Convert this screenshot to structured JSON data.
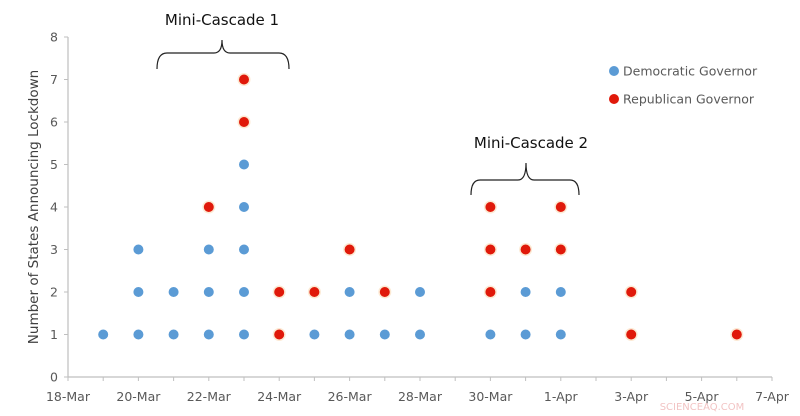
{
  "chart_data": {
    "type": "scatter",
    "title": "",
    "xlabel": "",
    "ylabel": "Number of States Announcing Lockdown",
    "ylim": [
      0,
      8
    ],
    "yticks": [
      0,
      1,
      2,
      3,
      4,
      5,
      6,
      7,
      8
    ],
    "xlim": [
      "18-Mar",
      "7-Apr"
    ],
    "xtick_labels": [
      "18-Mar",
      "20-Mar",
      "22-Mar",
      "24-Mar",
      "26-Mar",
      "28-Mar",
      "30-Mar",
      "1-Apr",
      "3-Apr",
      "5-Apr",
      "7-Apr"
    ],
    "grid": false,
    "legend_position": "upper right",
    "series": [
      {
        "name": "Democratic Governor",
        "color": "#5b9bd5",
        "points": [
          {
            "date": "19-Mar",
            "y": 1
          },
          {
            "date": "20-Mar",
            "y": 1
          },
          {
            "date": "20-Mar",
            "y": 2
          },
          {
            "date": "20-Mar",
            "y": 3
          },
          {
            "date": "21-Mar",
            "y": 1
          },
          {
            "date": "21-Mar",
            "y": 2
          },
          {
            "date": "22-Mar",
            "y": 1
          },
          {
            "date": "22-Mar",
            "y": 2
          },
          {
            "date": "22-Mar",
            "y": 3
          },
          {
            "date": "23-Mar",
            "y": 1
          },
          {
            "date": "23-Mar",
            "y": 2
          },
          {
            "date": "23-Mar",
            "y": 3
          },
          {
            "date": "23-Mar",
            "y": 4
          },
          {
            "date": "23-Mar",
            "y": 5
          },
          {
            "date": "25-Mar",
            "y": 1
          },
          {
            "date": "26-Mar",
            "y": 1
          },
          {
            "date": "26-Mar",
            "y": 2
          },
          {
            "date": "27-Mar",
            "y": 1
          },
          {
            "date": "28-Mar",
            "y": 1
          },
          {
            "date": "28-Mar",
            "y": 2
          },
          {
            "date": "30-Mar",
            "y": 1
          },
          {
            "date": "31-Mar",
            "y": 1
          },
          {
            "date": "31-Mar",
            "y": 2
          },
          {
            "date": "1-Apr",
            "y": 1
          },
          {
            "date": "1-Apr",
            "y": 2
          }
        ]
      },
      {
        "name": "Republican Governor",
        "color": "#e0190a",
        "points": [
          {
            "date": "22-Mar",
            "y": 4
          },
          {
            "date": "23-Mar",
            "y": 6
          },
          {
            "date": "23-Mar",
            "y": 7
          },
          {
            "date": "24-Mar",
            "y": 1
          },
          {
            "date": "24-Mar",
            "y": 2
          },
          {
            "date": "25-Mar",
            "y": 2
          },
          {
            "date": "26-Mar",
            "y": 3
          },
          {
            "date": "27-Mar",
            "y": 2
          },
          {
            "date": "30-Mar",
            "y": 2
          },
          {
            "date": "30-Mar",
            "y": 3
          },
          {
            "date": "30-Mar",
            "y": 4
          },
          {
            "date": "31-Mar",
            "y": 3
          },
          {
            "date": "1-Apr",
            "y": 3
          },
          {
            "date": "1-Apr",
            "y": 4
          },
          {
            "date": "3-Apr",
            "y": 1
          },
          {
            "date": "3-Apr",
            "y": 2
          },
          {
            "date": "6-Apr",
            "y": 1
          }
        ]
      }
    ],
    "annotations": [
      {
        "text": "Mini-Cascade 1",
        "spans": [
          "20-Mar",
          "24-Mar"
        ],
        "type": "brace"
      },
      {
        "text": "Mini-Cascade 2",
        "spans": [
          "29-Mar",
          "2-Apr"
        ],
        "type": "brace"
      }
    ]
  },
  "axis": {
    "y_title": "Number of States Announcing Lockdown",
    "y_ticks": [
      "0",
      "1",
      "2",
      "3",
      "4",
      "5",
      "6",
      "7",
      "8"
    ],
    "x_ticks": [
      "18-Mar",
      "20-Mar",
      "22-Mar",
      "24-Mar",
      "26-Mar",
      "28-Mar",
      "30-Mar",
      "1-Apr",
      "3-Apr",
      "5-Apr",
      "7-Apr"
    ]
  },
  "legend": {
    "dem_label": "Democratic Governor",
    "rep_label": "Republican Governor",
    "dem_color": "#5b9bd5",
    "rep_color": "#e0190a"
  },
  "annotations": {
    "cascade1": "Mini-Cascade 1",
    "cascade2": "Mini-Cascade 2"
  },
  "watermark": "SCIENCEAQ.COM"
}
